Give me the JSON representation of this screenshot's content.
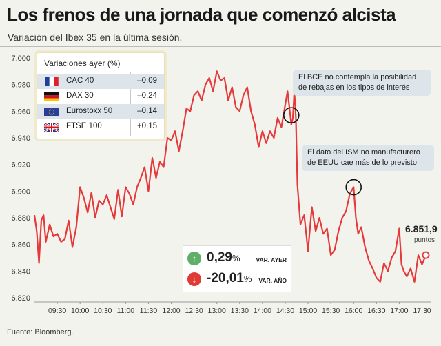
{
  "header": {
    "title": "Los frenos de una jornada que comenzó alcista",
    "subtitle": "Variación del Ibex 35 en la última sesión."
  },
  "footer": {
    "source": "Fuente: Bloomberg."
  },
  "legend": {
    "title": "Variaciones ayer (%)",
    "items": [
      {
        "name": "CAC 40",
        "value": "–0,09",
        "flag": "france-flag-icon"
      },
      {
        "name": "DAX 30",
        "value": "–0,24",
        "flag": "germany-flag-icon"
      },
      {
        "name": "Eurostoxx 50",
        "value": "–0,14",
        "flag": "eu-flag-icon"
      },
      {
        "name": "FTSE 100",
        "value": "+0,15",
        "flag": "uk-flag-icon"
      }
    ]
  },
  "annotations": [
    {
      "text": "El BCE no contempla la posibilidad de rebajas en los tipos de interés",
      "time": "14:38"
    },
    {
      "text": "El dato del ISM no manufacturero de EEUU cae más de lo previsto",
      "time": "16:00"
    }
  ],
  "kpis": [
    {
      "value": "0,29",
      "unit": "%",
      "label": "VAR. AYER",
      "direction": "up",
      "color": "#5fae6a"
    },
    {
      "value": "-20,01",
      "unit": "%",
      "label": "VAR. AÑO",
      "direction": "down",
      "color": "#e03a35"
    }
  ],
  "last": {
    "value": "6.851,9",
    "unit": "puntos"
  },
  "colors": {
    "line": "#e5393a",
    "accent": "#e03a35",
    "up": "#5fae6a",
    "panel": "#dde5ea"
  },
  "chart_data": {
    "type": "line",
    "title": "Los frenos de una jornada que comenzó alcista",
    "subtitle": "Variación del Ibex 35 en la última sesión.",
    "xlabel": "",
    "ylabel": "",
    "ylim": [
      6820,
      7000
    ],
    "xlim": [
      "09:00",
      "17:35"
    ],
    "yticks": [
      "6.820",
      "6.840",
      "6.860",
      "6.880",
      "6.900",
      "6.920",
      "6.940",
      "6.960",
      "6.980",
      "7.000"
    ],
    "xticks": [
      "09:30",
      "10:00",
      "10:30",
      "11:00",
      "11:30",
      "12:00",
      "12:30",
      "13:00",
      "13:30",
      "14:00",
      "14:30",
      "15:00",
      "15:30",
      "16:00",
      "16:30",
      "17:00",
      "17:30"
    ],
    "grid": false,
    "series": [
      {
        "x": [
          "09:00",
          "09:03",
          "09:06",
          "09:09",
          "09:12",
          "09:15",
          "09:20",
          "09:25",
          "09:30",
          "09:35",
          "09:40",
          "09:45",
          "09:50",
          "09:55",
          "10:00",
          "10:05",
          "10:10",
          "10:15",
          "10:20",
          "10:25",
          "10:30",
          "10:35",
          "10:40",
          "10:45",
          "10:50",
          "10:55",
          "11:00",
          "11:05",
          "11:10",
          "11:15",
          "11:20",
          "11:25",
          "11:30",
          "11:35",
          "11:40",
          "11:45",
          "11:50",
          "11:55",
          "12:00",
          "12:05",
          "12:10",
          "12:15",
          "12:20",
          "12:25",
          "12:30",
          "12:35",
          "12:40",
          "12:45",
          "12:50",
          "12:55",
          "13:00",
          "13:05",
          "13:10",
          "13:15",
          "13:20",
          "13:25",
          "13:30",
          "13:35",
          "13:40",
          "13:45",
          "13:50",
          "13:55",
          "14:00",
          "14:05",
          "14:10",
          "14:15",
          "14:20",
          "14:25",
          "14:30",
          "14:33",
          "14:36",
          "14:38",
          "14:40",
          "14:42",
          "14:44",
          "14:46",
          "14:50",
          "14:55",
          "15:00",
          "15:05",
          "15:10",
          "15:15",
          "15:20",
          "15:25",
          "15:30",
          "15:35",
          "15:40",
          "15:45",
          "15:50",
          "15:55",
          "16:00",
          "16:03",
          "16:06",
          "16:10",
          "16:15",
          "16:20",
          "16:25",
          "16:30",
          "16:35",
          "16:40",
          "16:45",
          "16:50",
          "16:55",
          "17:00",
          "17:03",
          "17:06",
          "17:10",
          "17:15",
          "17:20",
          "17:25",
          "17:30",
          "17:35"
        ],
        "values": [
          6882,
          6870,
          6846,
          6878,
          6882,
          6862,
          6875,
          6866,
          6868,
          6862,
          6864,
          6878,
          6858,
          6873,
          6903,
          6895,
          6884,
          6899,
          6880,
          6893,
          6890,
          6897,
          6888,
          6879,
          6901,
          6881,
          6903,
          6898,
          6890,
          6903,
          6910,
          6918,
          6900,
          6925,
          6910,
          6922,
          6918,
          6940,
          6938,
          6945,
          6930,
          6945,
          6962,
          6960,
          6972,
          6975,
          6968,
          6980,
          6985,
          6975,
          6990,
          6983,
          6985,
          6968,
          6978,
          6963,
          6960,
          6972,
          6978,
          6960,
          6950,
          6933,
          6945,
          6936,
          6945,
          6940,
          6955,
          6948,
          6965,
          6975,
          6960,
          6950,
          6955,
          6975,
          6955,
          6905,
          6875,
          6882,
          6855,
          6888,
          6870,
          6880,
          6868,
          6872,
          6852,
          6856,
          6870,
          6880,
          6885,
          6898,
          6903,
          6880,
          6868,
          6873,
          6858,
          6848,
          6842,
          6835,
          6832,
          6846,
          6840,
          6850,
          6855,
          6872,
          6845,
          6840,
          6836,
          6842,
          6832,
          6852,
          6845,
          6852
        ]
      }
    ]
  }
}
